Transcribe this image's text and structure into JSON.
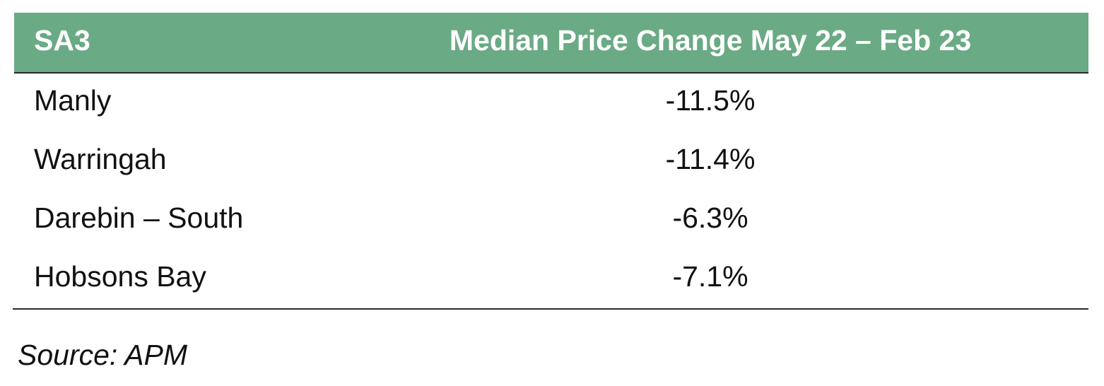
{
  "table": {
    "header": [
      "SA3",
      "Median Price Change May 22 – Feb 23"
    ],
    "rows": [
      [
        "Manly",
        "-11.5%"
      ],
      [
        "Warringah",
        "-11.4%"
      ],
      [
        "Darebin – South",
        "-6.3%"
      ],
      [
        "Hobsons Bay",
        "-7.1%"
      ]
    ]
  },
  "source": "Source: APM"
}
